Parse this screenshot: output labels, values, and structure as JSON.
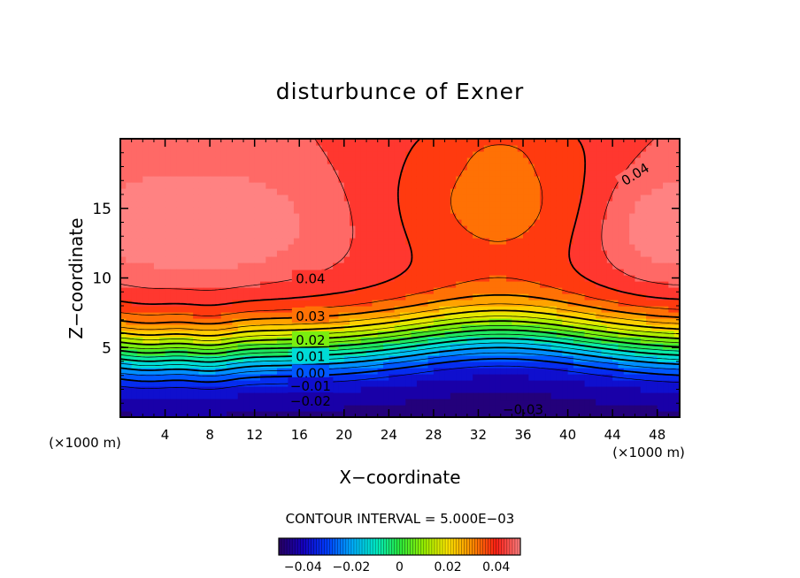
{
  "chart_data": {
    "type": "contour",
    "title": "disturbunce of Exner",
    "xlabel": "X−coordinate",
    "ylabel": "Z−coordinate",
    "x_unit_left": "(×1000 m)",
    "x_unit_right": "(×1000 m)",
    "xlim": [
      0,
      50
    ],
    "ylim": [
      0,
      20
    ],
    "x_ticks": [
      4,
      8,
      12,
      16,
      20,
      24,
      28,
      32,
      36,
      40,
      44,
      48
    ],
    "y_ticks": [
      5,
      10,
      15
    ],
    "contour_interval_text": "CONTOUR INTERVAL = 5.000E−03",
    "contour_levels": [
      -0.035,
      -0.03,
      -0.025,
      -0.02,
      -0.015,
      -0.01,
      -0.005,
      0.0,
      0.005,
      0.01,
      0.015,
      0.02,
      0.025,
      0.03,
      0.035,
      0.04,
      0.045
    ],
    "contour_labels": [
      {
        "text": "0.04",
        "x": 17,
        "z": 10.0
      },
      {
        "text": "0.04",
        "x": 46,
        "z": 17.5
      },
      {
        "text": "0.03",
        "x": 17,
        "z": 7.3
      },
      {
        "text": "0.02",
        "x": 17,
        "z": 5.6
      },
      {
        "text": "0.01",
        "x": 17,
        "z": 4.4
      },
      {
        "text": "0.00",
        "x": 17,
        "z": 3.2
      },
      {
        "text": "−0.01",
        "x": 17,
        "z": 2.3
      },
      {
        "text": "−0.02",
        "x": 17,
        "z": 1.2
      },
      {
        "text": "−0.03",
        "x": 36,
        "z": 0.6
      }
    ],
    "colorbar": {
      "range": [
        -0.05,
        0.05
      ],
      "ticks": [
        -0.04,
        -0.02,
        0,
        0.02,
        0.04
      ],
      "tick_labels": [
        "−0.04",
        "−0.02",
        "0",
        "0.02",
        "0.04"
      ],
      "colormap": "rainbow"
    },
    "grid": false
  }
}
